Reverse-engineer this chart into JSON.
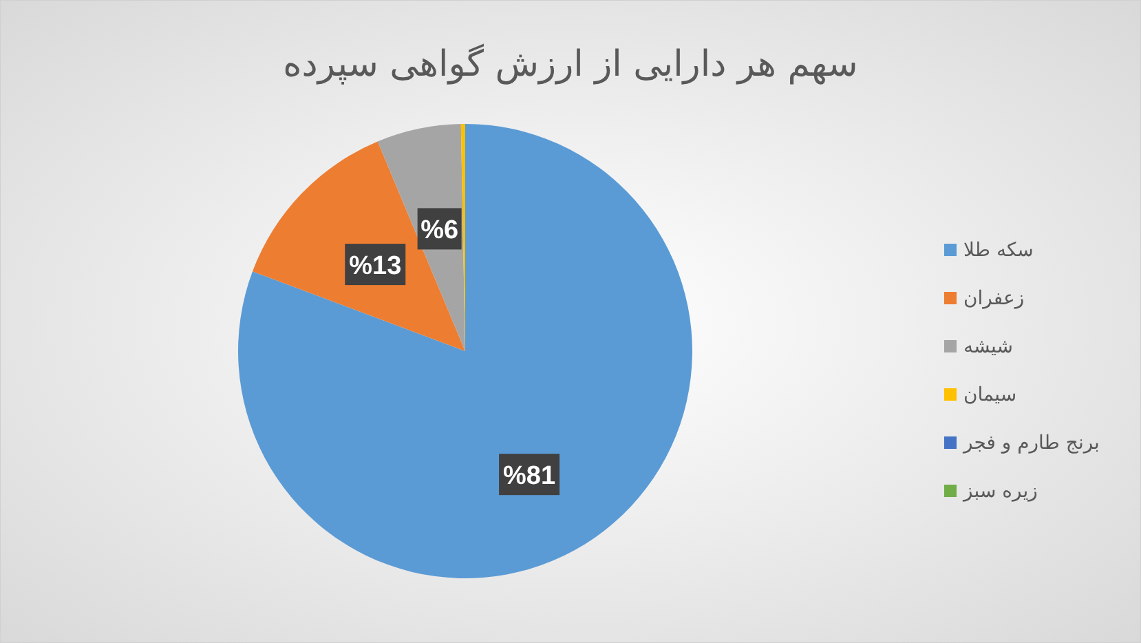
{
  "chart_data": {
    "type": "pie",
    "title": "سهم هر دارایی از ارزش گواهی سپرده",
    "categories": [
      "سکه طلا",
      "زعفران",
      "شیشه",
      "سیمان",
      "برنج طارم و فجر",
      "زیره سبز"
    ],
    "values": [
      80.7,
      13,
      6,
      0.3,
      0,
      0
    ],
    "value_labels": [
      "%81",
      "%13",
      "%6",
      null,
      null,
      null
    ],
    "colors": [
      "#5b9bd5",
      "#ed7d31",
      "#a5a5a5",
      "#ffc000",
      "#4472c4",
      "#70ad47"
    ],
    "legend": "right"
  }
}
